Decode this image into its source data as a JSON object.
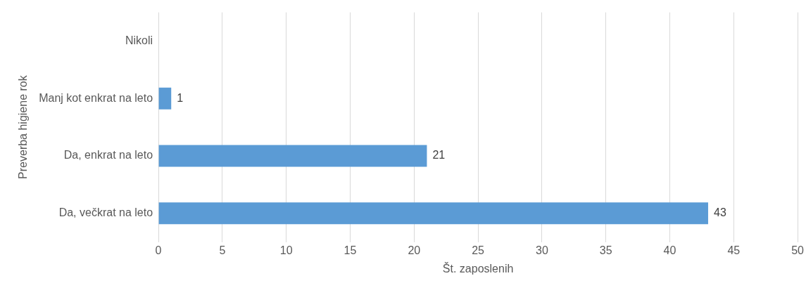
{
  "chart_data": {
    "type": "bar",
    "orientation": "horizontal",
    "xlabel": "Št. zaposlenih",
    "ylabel": "Preverba higiene rok",
    "categories": [
      "Nikoli",
      "Manj kot enkrat na leto",
      "Da, enkrat na leto",
      "Da, večkrat na leto"
    ],
    "values": [
      0,
      1,
      21,
      43
    ],
    "value_labels": [
      null,
      "1",
      "21",
      "43"
    ],
    "color": "#5b9bd5",
    "xlim": [
      0,
      50
    ],
    "xticks": [
      0,
      5,
      10,
      15,
      20,
      25,
      30,
      35,
      40,
      45,
      50
    ],
    "grid": "x",
    "legend": false
  }
}
